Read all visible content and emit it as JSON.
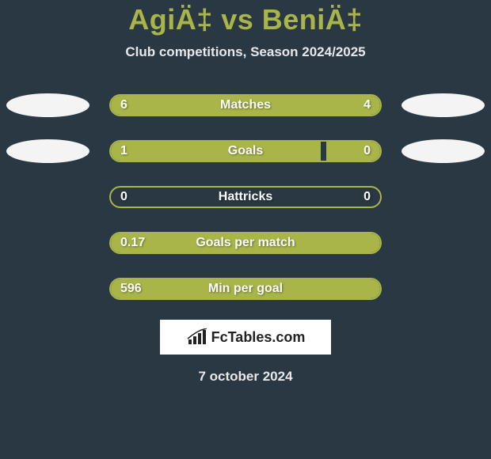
{
  "header": {
    "title": "AgiÄ‡ vs BeniÄ‡",
    "subtitle": "Club competitions, Season 2024/2025",
    "title_color": "#a9b549",
    "subtitle_color": "#e8e8e8"
  },
  "background_color": "#2a3844",
  "bar_color": "#a9b549",
  "bar_border_color": "#a9b549",
  "text_color": "#ffffff",
  "oval_color": "#f4f4f4",
  "stats": [
    {
      "label": "Matches",
      "left_value": "6",
      "right_value": "4",
      "left_pct": 60,
      "right_pct": 40,
      "show_ovals": true
    },
    {
      "label": "Goals",
      "left_value": "1",
      "right_value": "0",
      "left_pct": 78,
      "right_pct": 20,
      "show_ovals": true
    },
    {
      "label": "Hattricks",
      "left_value": "0",
      "right_value": "0",
      "left_pct": 0,
      "right_pct": 0,
      "show_ovals": false
    },
    {
      "label": "Goals per match",
      "left_value": "0.17",
      "right_value": "",
      "left_pct": 100,
      "right_pct": 0,
      "show_ovals": false
    },
    {
      "label": "Min per goal",
      "left_value": "596",
      "right_value": "",
      "left_pct": 100,
      "right_pct": 0,
      "show_ovals": false
    }
  ],
  "logo": {
    "text": "FcTables.com",
    "background": "#ffffff",
    "text_color": "#222222"
  },
  "date": "7 october 2024"
}
